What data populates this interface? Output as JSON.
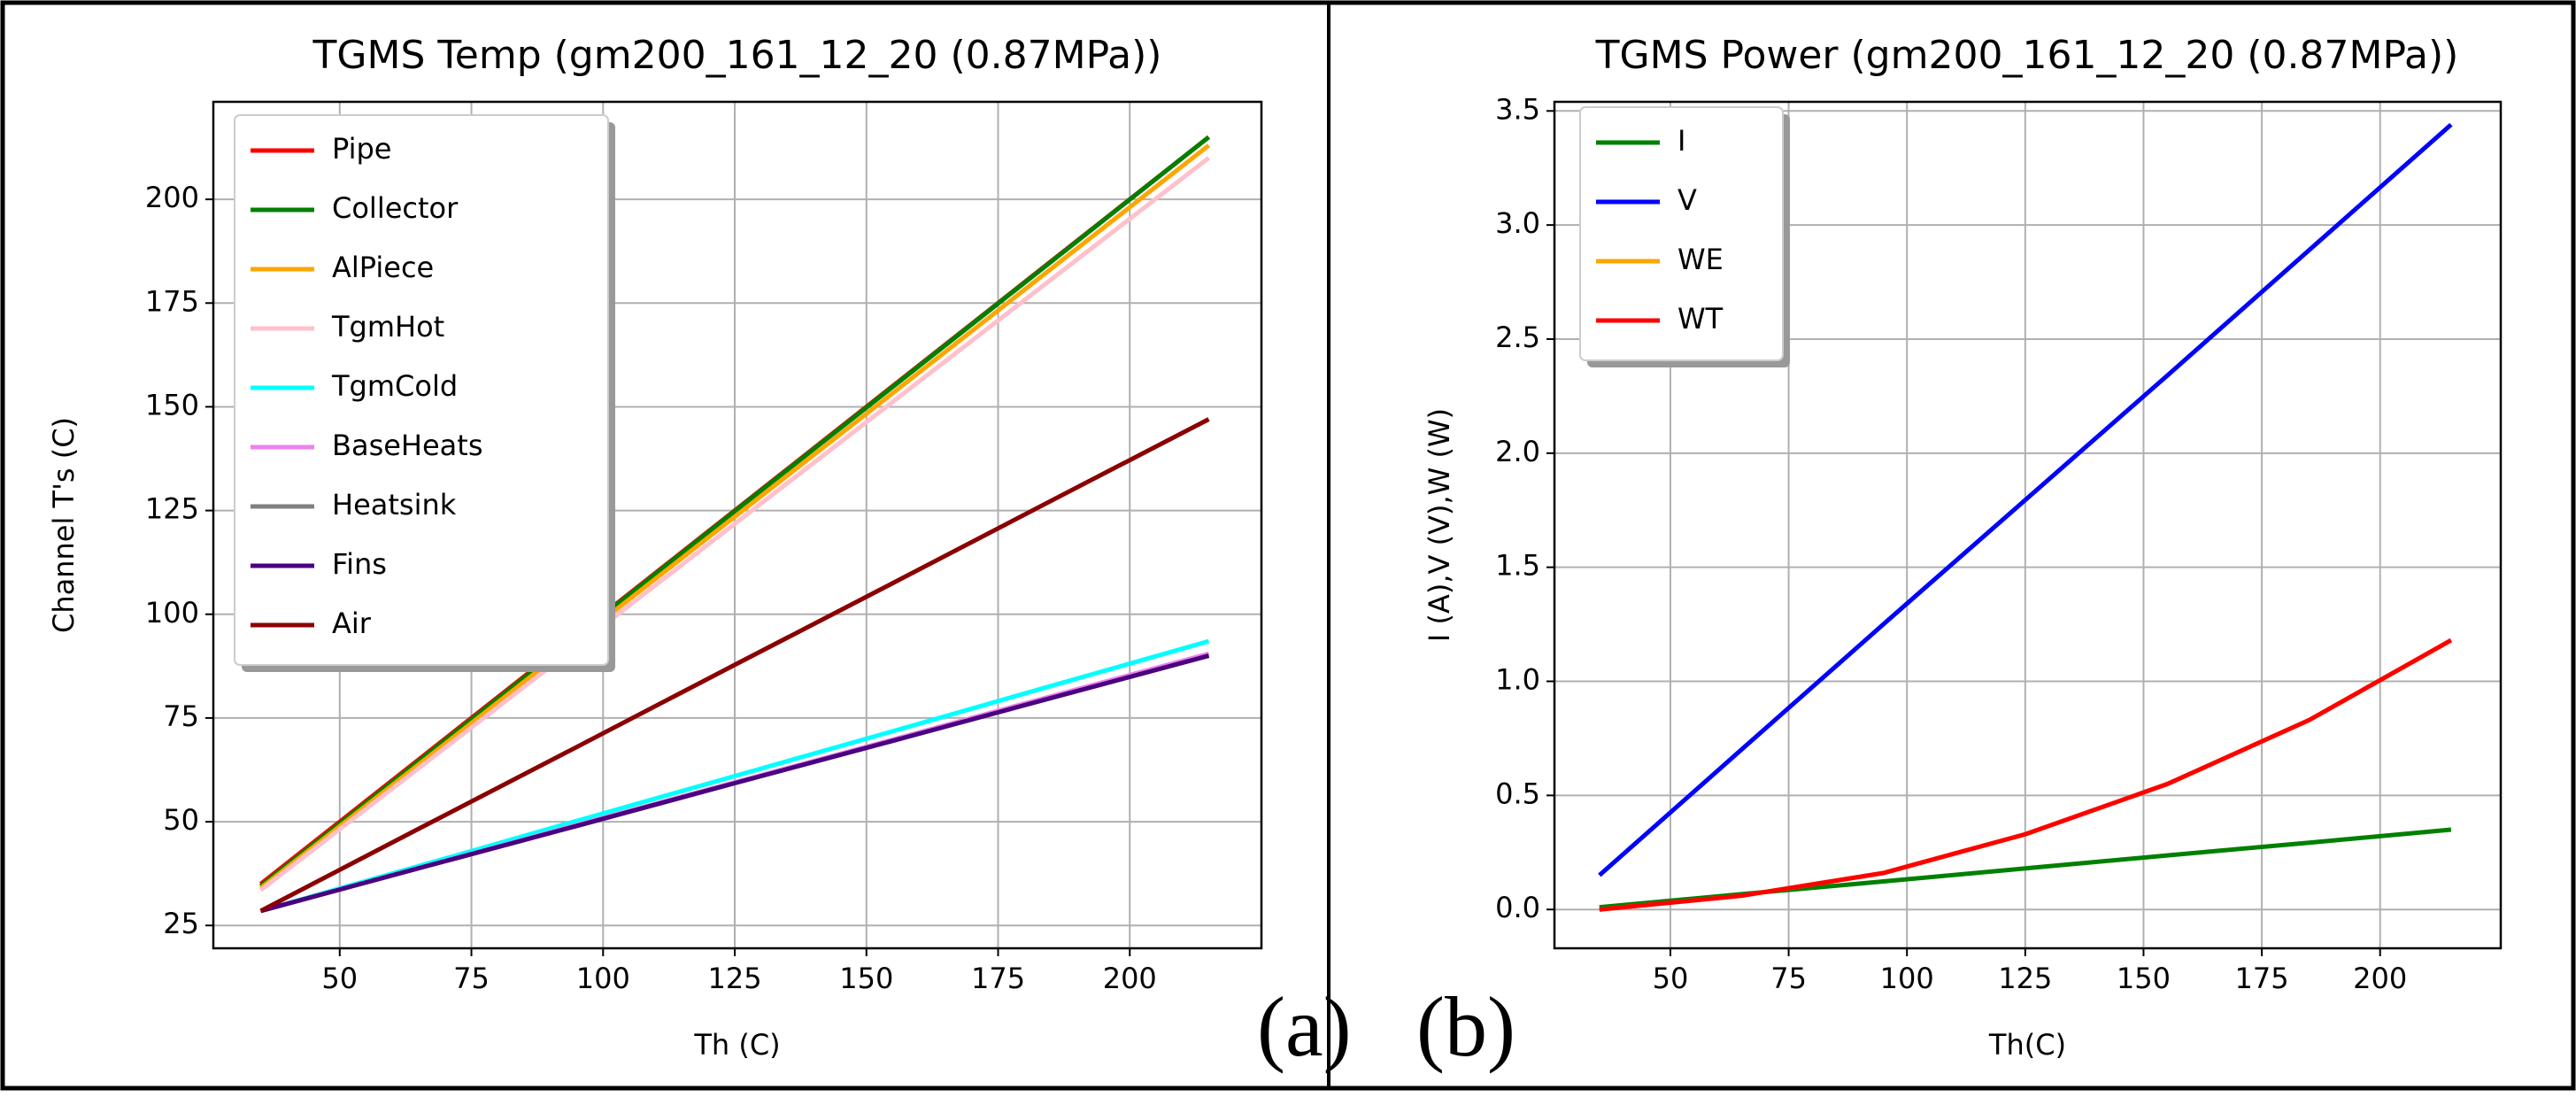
{
  "chart_data": [
    {
      "type": "line",
      "title": "TGMS Temp (gm200_161_12_20 (0.87MPa))",
      "xlabel": "Th (C)",
      "ylabel": "Channel T's (C)",
      "annotation": "(a)",
      "x": [
        35,
        65,
        95,
        125,
        155,
        185,
        215
      ],
      "series": [
        {
          "name": "Pipe",
          "color": "#ff0000",
          "values": [
            35,
            65,
            95,
            125,
            155,
            185,
            215
          ]
        },
        {
          "name": "Collector",
          "color": "#008000",
          "values": [
            34.5,
            64.6,
            94.7,
            124.8,
            154.8,
            184.9,
            215
          ]
        },
        {
          "name": "AlPiece",
          "color": "#ffa500",
          "values": [
            34,
            63.8,
            93.7,
            123.5,
            153.3,
            183.2,
            213
          ]
        },
        {
          "name": "TgmHot",
          "color": "#ffc0cb",
          "values": [
            33.5,
            62.9,
            92.3,
            121.8,
            151.2,
            180.6,
            210
          ]
        },
        {
          "name": "TgmCold",
          "color": "#00ffff",
          "values": [
            28.5,
            39.3,
            50.2,
            61.0,
            71.8,
            82.7,
            93.5
          ]
        },
        {
          "name": "BaseHeats",
          "color": "#ee82ee",
          "values": [
            28.5,
            38.8,
            49.2,
            59.5,
            69.8,
            80.2,
            90.5
          ]
        },
        {
          "name": "Heatsink",
          "color": "#808080",
          "values": [
            28.5,
            38.8,
            49.0,
            59.3,
            69.5,
            79.8,
            90
          ]
        },
        {
          "name": "Fins",
          "color": "#4b0082",
          "values": [
            28.5,
            38.8,
            49.0,
            59.3,
            69.5,
            79.8,
            90
          ]
        },
        {
          "name": "Air",
          "color": "#8b0000",
          "values": [
            28.5,
            48.3,
            68.0,
            87.8,
            107.5,
            127.3,
            147
          ]
        }
      ],
      "xlim": [
        26,
        225
      ],
      "ylim": [
        19.5,
        223.5
      ],
      "xticks": [
        50,
        75,
        100,
        125,
        150,
        175,
        200
      ],
      "yticks": [
        25,
        50,
        75,
        100,
        125,
        150,
        175,
        200
      ],
      "grid": true,
      "legend": "upper left"
    },
    {
      "type": "line",
      "title": "TGMS Power (gm200_161_12_20 (0.87MPa))",
      "xlabel": "Th(C)",
      "ylabel": "I (A),V (V),W (W)",
      "annotation": "(b)",
      "x": [
        35,
        65,
        95,
        125,
        155,
        185,
        215
      ],
      "series": [
        {
          "name": "I",
          "color": "#008000",
          "values": [
            0.01,
            0.067,
            0.123,
            0.18,
            0.237,
            0.293,
            0.35
          ]
        },
        {
          "name": "V",
          "color": "#0000ff",
          "values": [
            0.15,
            0.7,
            1.25,
            1.795,
            2.34,
            2.89,
            3.44
          ]
        },
        {
          "name": "WE",
          "color": "#ffa500",
          "values": [
            0.0,
            0.06,
            0.16,
            0.33,
            0.55,
            0.83,
            1.18
          ]
        },
        {
          "name": "WT",
          "color": "#ff0000",
          "values": [
            0.0,
            0.06,
            0.16,
            0.33,
            0.55,
            0.83,
            1.18
          ]
        }
      ],
      "xlim": [
        25.5,
        225.5
      ],
      "ylim": [
        -0.17,
        3.54
      ],
      "xticks": [
        50,
        75,
        100,
        125,
        150,
        175,
        200
      ],
      "yticks": [
        {
          "value": 0,
          "label": "0.0"
        },
        0.5,
        {
          "value": 1,
          "label": "1.0"
        },
        1.5,
        {
          "value": 2,
          "label": "2.0"
        },
        2.5,
        {
          "value": 3,
          "label": "3.0"
        },
        3.5
      ],
      "grid": true,
      "legend": "upper left"
    }
  ]
}
